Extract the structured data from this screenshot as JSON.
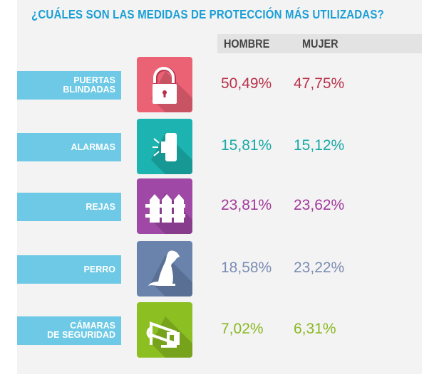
{
  "title": "¿CUÁLES SON LAS MEDIDAS DE PROTECCIÓN MÁS UTILIZADAS?",
  "columns": [
    "HOMBRE",
    "MUJER"
  ],
  "rows": [
    {
      "label": "PUERTAS\nBLINDADAS",
      "icon": "padlock-icon",
      "hombre": "50,49%",
      "mujer": "47,75%",
      "color": "#b8324b",
      "icon_color": "#ec6275"
    },
    {
      "label": "ALARMAS",
      "icon": "alarm-icon",
      "hombre": "15,81%",
      "mujer": "15,12%",
      "color": "#17a9a7",
      "icon_color": "#1db3b0"
    },
    {
      "label": "REJAS",
      "icon": "fence-icon",
      "hombre": "23,81%",
      "mujer": "23,62%",
      "color": "#a13a9b",
      "icon_color": "#9f48a5"
    },
    {
      "label": "PERRO",
      "icon": "dog-icon",
      "hombre": "18,58%",
      "mujer": "23,22%",
      "color": "#7b8db3",
      "icon_color": "#6983ad"
    },
    {
      "label": "CÁMARAS\nDE SEGURIDAD",
      "icon": "camera-icon",
      "hombre": "7,02%",
      "mujer": "6,31%",
      "color": "#8ab820",
      "icon_color": "#8cbf22"
    }
  ],
  "chart_data": {
    "type": "table",
    "title": "¿CUÁLES SON LAS MEDIDAS DE PROTECCIÓN MÁS UTILIZADAS?",
    "categories": [
      "PUERTAS BLINDADAS",
      "ALARMAS",
      "REJAS",
      "PERRO",
      "CÁMARAS DE SEGURIDAD"
    ],
    "series": [
      {
        "name": "HOMBRE",
        "values": [
          50.49,
          15.81,
          23.81,
          18.58,
          7.02
        ]
      },
      {
        "name": "MUJER",
        "values": [
          47.75,
          15.12,
          23.62,
          23.22,
          6.31
        ]
      }
    ]
  }
}
